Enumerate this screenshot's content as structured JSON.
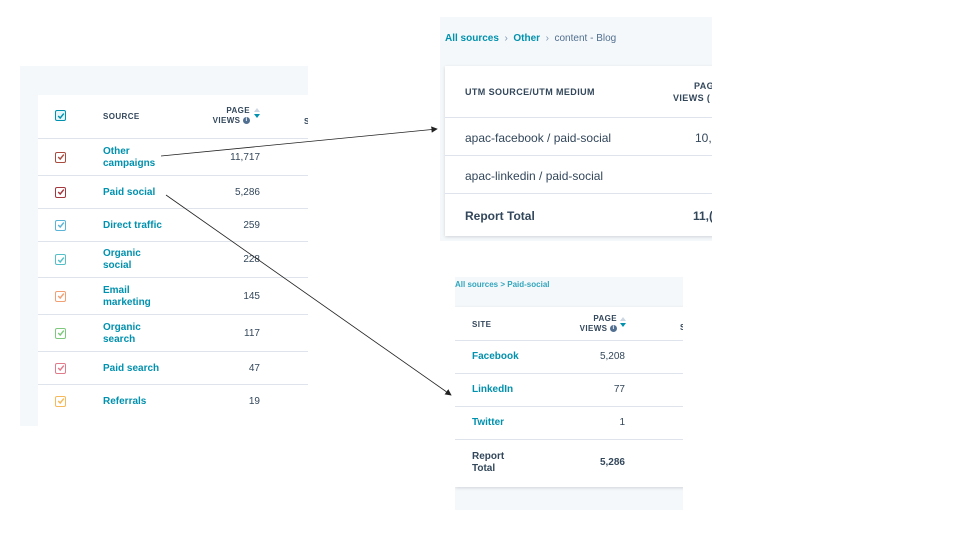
{
  "left_table": {
    "col_source": "SOURCE",
    "col_pageviews_l1": "PAGE",
    "col_pageviews_l2": "VIEWS",
    "col_cut": "S",
    "rows": [
      {
        "source_l1": "Other",
        "source_l2": "campaigns",
        "views": "11,717",
        "color": "#a94c3f"
      },
      {
        "source_l1": "Paid social",
        "source_l2": "",
        "views": "5,286",
        "color": "#a4363e"
      },
      {
        "source_l1": "Direct traffic",
        "source_l2": "",
        "views": "259",
        "color": "#5bb3d6"
      },
      {
        "source_l1": "Organic",
        "source_l2": "social",
        "views": "228",
        "color": "#55bfc7"
      },
      {
        "source_l1": "Email",
        "source_l2": "marketing",
        "views": "145",
        "color": "#f0a074"
      },
      {
        "source_l1": "Organic",
        "source_l2": "search",
        "views": "117",
        "color": "#7ec87e"
      },
      {
        "source_l1": "Paid search",
        "source_l2": "",
        "views": "47",
        "color": "#e07b8b"
      },
      {
        "source_l1": "Referrals",
        "source_l2": "",
        "views": "19",
        "color": "#f5b95c"
      }
    ],
    "header_checkbox_color": "#0091ae"
  },
  "utm_panel": {
    "breadcrumb": [
      "All sources",
      "Other",
      "content - Blog"
    ],
    "col_utm": "UTM SOURCE/UTM MEDIUM",
    "col_pageviews_l1": "PAG",
    "col_pageviews_l2": "VIEWS (",
    "rows": [
      {
        "label": "apac-facebook / paid-social",
        "views": "10,7"
      },
      {
        "label": "apac-linkedin / paid-social",
        "views": ":"
      }
    ],
    "total_label": "Report Total",
    "total_value": "11,("
  },
  "site_panel": {
    "breadcrumb": "All sources > Paid-social",
    "col_site": "SITE",
    "col_pageviews_l1": "PAGE",
    "col_pageviews_l2": "VIEWS",
    "col_cut": "S",
    "rows": [
      {
        "site": "Facebook",
        "views": "5,208"
      },
      {
        "site": "LinkedIn",
        "views": "77"
      },
      {
        "site": "Twitter",
        "views": "1"
      }
    ],
    "total_label_l1": "Report",
    "total_label_l2": "Total",
    "total_value": "5,286"
  },
  "icons": {
    "info": "info-icon",
    "sort": "sort-icon",
    "check": "check-icon"
  }
}
